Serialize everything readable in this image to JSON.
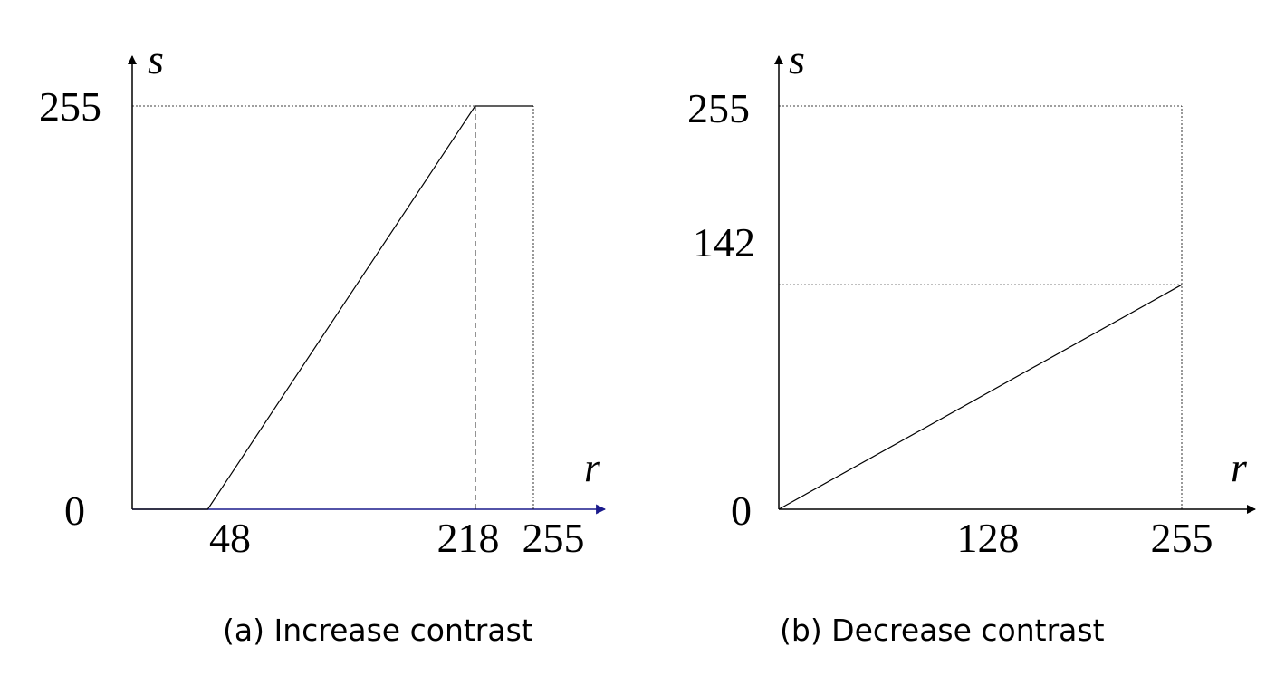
{
  "chart_data": [
    {
      "type": "line",
      "caption": "(a) Increase contrast",
      "xlabel": "r",
      "ylabel": "s",
      "xlim": [
        0,
        255
      ],
      "ylim": [
        0,
        255
      ],
      "x_ticks": [
        "48",
        "218",
        "255"
      ],
      "y_ticks": [
        "0",
        "255"
      ],
      "series": [
        {
          "x": [
            0,
            48,
            218,
            255
          ],
          "y": [
            0,
            0,
            255,
            255
          ]
        }
      ],
      "x_axis_color": "#1a1a8c",
      "guides": "dotted lines at s=255 and r=255; dashed line at r=218"
    },
    {
      "type": "line",
      "caption": "(b) Decrease contrast",
      "xlabel": "r",
      "ylabel": "s",
      "xlim": [
        0,
        255
      ],
      "ylim": [
        0,
        255
      ],
      "x_ticks": [
        "128",
        "255"
      ],
      "y_ticks": [
        "0",
        "142",
        "255"
      ],
      "series": [
        {
          "x": [
            0,
            255
          ],
          "y": [
            0,
            142
          ]
        }
      ],
      "guides": "dotted lines at s=255, s=142 and r=255"
    }
  ]
}
